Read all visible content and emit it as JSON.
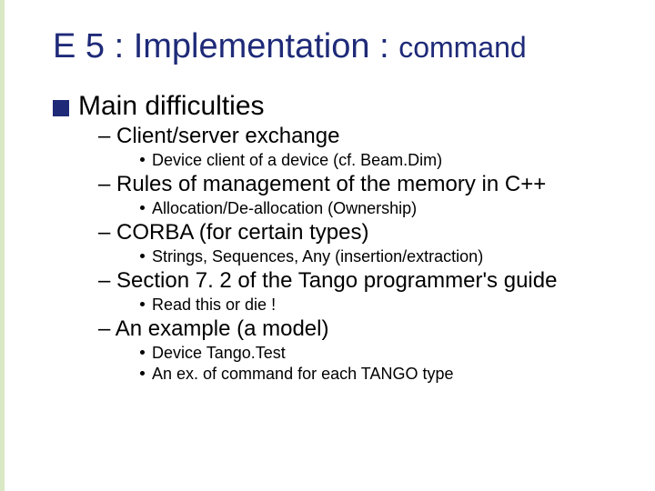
{
  "colors": {
    "title": "#1e2a78",
    "bullet_square": "#1e2a78",
    "text": "#000000",
    "edge_bar": "#d9e8c5",
    "background": "#ffffff"
  },
  "typography": {
    "family": "Comic Sans MS",
    "title_fontsize_pt": 38,
    "title_small_fontsize_pt": 32,
    "lvl1_fontsize_pt": 30,
    "lvl2_fontsize_pt": 24,
    "lvl3_fontsize_pt": 18
  },
  "title": {
    "main": "E 5 : Implementation : ",
    "tail": "command"
  },
  "lvl1": {
    "text": "Main difficulties"
  },
  "items": [
    {
      "lvl2": "Client/server exchange",
      "lvl3": [
        "Device client of a device (cf. Beam.Dim)"
      ]
    },
    {
      "lvl2": "Rules of management of the memory in C++",
      "lvl3": [
        "Allocation/De-allocation (Ownership)"
      ]
    },
    {
      "lvl2": "CORBA (for certain types)",
      "lvl3": [
        "Strings, Sequences, Any (insertion/extraction)"
      ]
    },
    {
      "lvl2": "Section 7. 2 of the Tango programmer's guide",
      "lvl3": [
        "Read this or die !"
      ]
    },
    {
      "lvl2": "An example (a model)",
      "lvl3": [
        "Device Tango.Test",
        "An ex. of command for each TANGO type"
      ]
    }
  ]
}
